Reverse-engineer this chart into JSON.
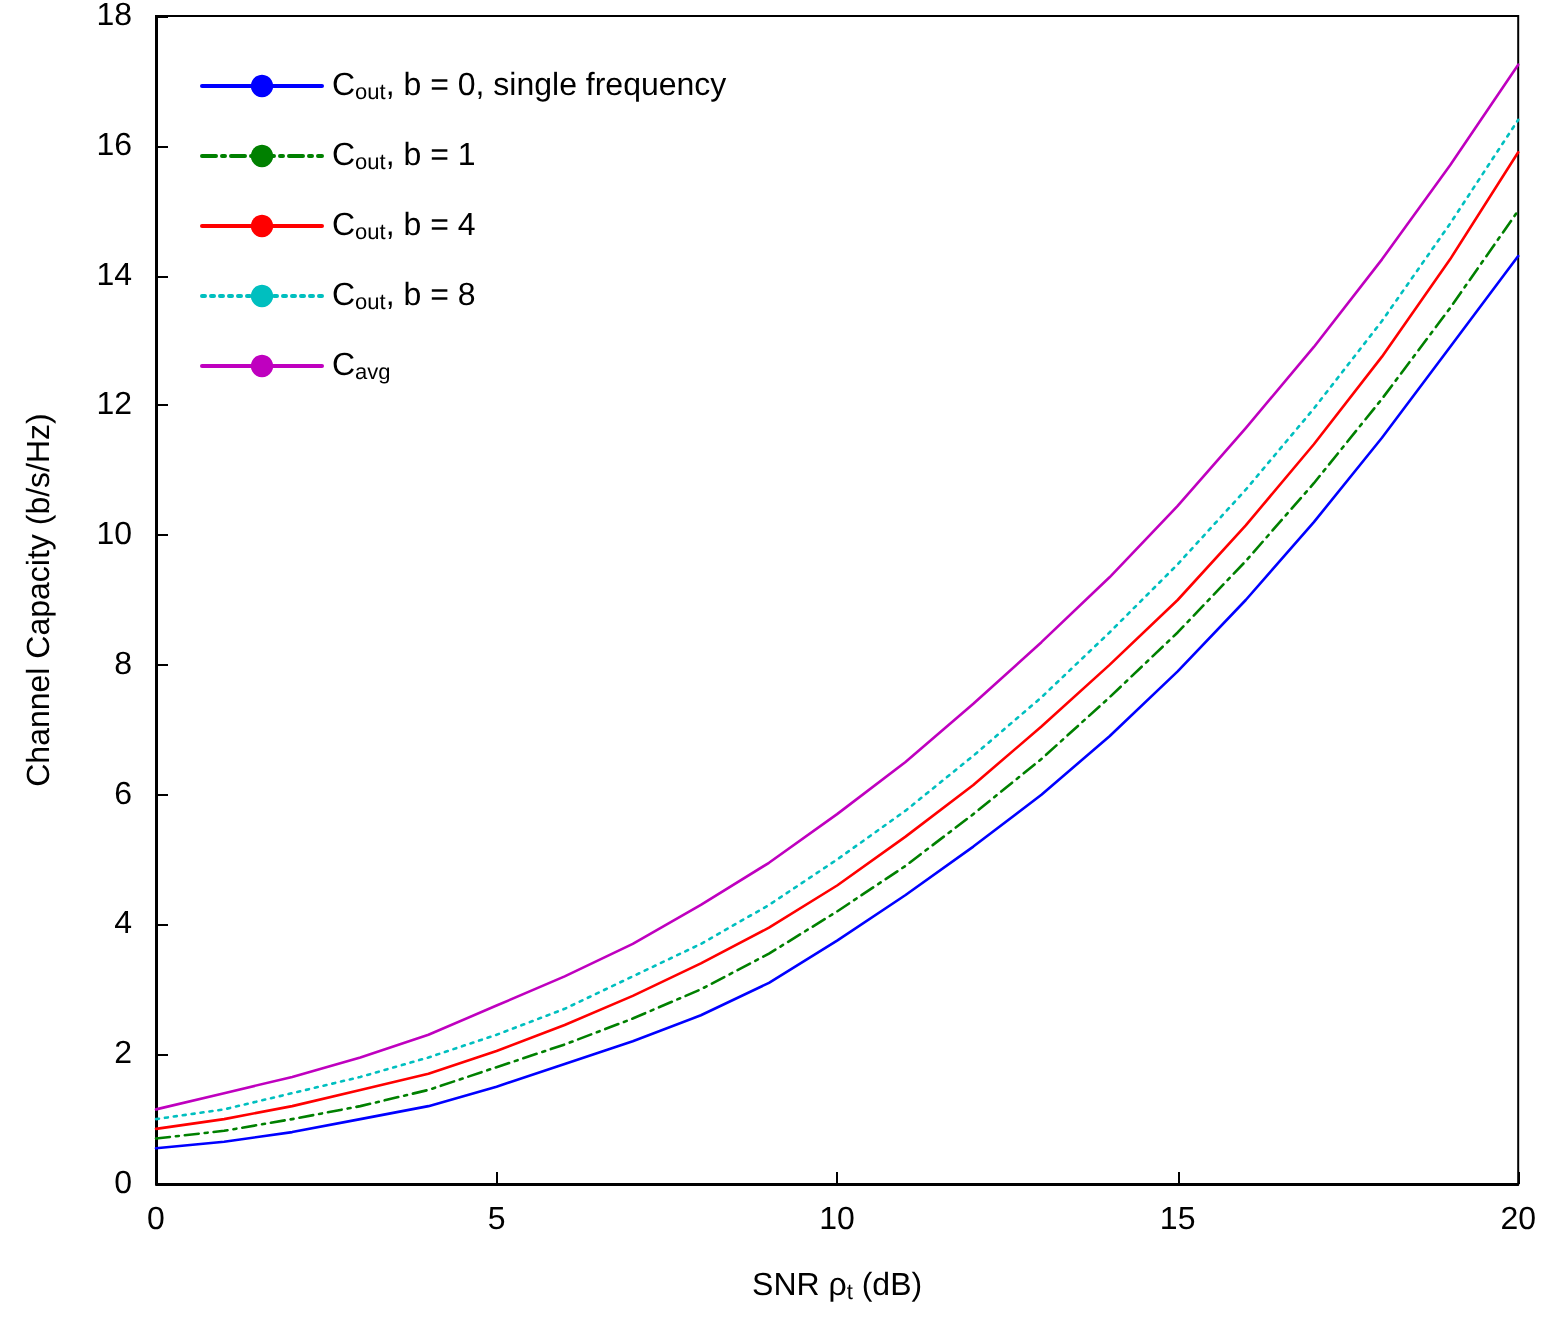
{
  "chart_data": {
    "type": "line",
    "xlabel": "SNR ρ$_{t}$ (dB)",
    "ylabel": "Channel Capacity (b/s/Hz)",
    "x": [
      0,
      1,
      2,
      3,
      4,
      5,
      6,
      7,
      8,
      9,
      10,
      11,
      12,
      13,
      14,
      15,
      16,
      17,
      18,
      19,
      20
    ],
    "xlim": [
      0,
      20
    ],
    "xticks": [
      0,
      5,
      10,
      15,
      20
    ],
    "ylim": [
      0,
      18
    ],
    "yticks": [
      0,
      2,
      4,
      6,
      8,
      10,
      12,
      14,
      16,
      18
    ],
    "legend": "top left",
    "marker": "none",
    "series": [
      {
        "name": "C$_{out}$, b = 0, single frequency",
        "color": "#0000ff",
        "line_style": "solid",
        "values": [
          0.55,
          0.65,
          0.8,
          1.0,
          1.2,
          1.5,
          1.85,
          2.2,
          2.6,
          3.1,
          3.75,
          4.45,
          5.2,
          6.0,
          6.9,
          7.9,
          9.0,
          10.2,
          11.5,
          12.9,
          14.3
        ]
      },
      {
        "name": "C$_{out}$, b = 1",
        "color": "#008000",
        "line_style": "dashed",
        "values": [
          0.7,
          0.82,
          1.0,
          1.2,
          1.45,
          1.8,
          2.15,
          2.55,
          3.0,
          3.55,
          4.2,
          4.9,
          5.7,
          6.55,
          7.5,
          8.5,
          9.6,
          10.8,
          12.1,
          13.5,
          15.0
        ]
      },
      {
        "name": "C$_{out}$, b = 4",
        "color": "#ff0000",
        "line_style": "solid",
        "values": [
          0.85,
          1.0,
          1.2,
          1.45,
          1.7,
          2.05,
          2.45,
          2.9,
          3.4,
          3.95,
          4.6,
          5.35,
          6.15,
          7.05,
          8.0,
          9.0,
          10.15,
          11.4,
          12.75,
          14.25,
          15.9
        ]
      },
      {
        "name": "C$_{out}$, b = 8",
        "color": "#00bfbf",
        "line_style": "dotted",
        "values": [
          1.0,
          1.15,
          1.4,
          1.65,
          1.95,
          2.3,
          2.7,
          3.2,
          3.7,
          4.3,
          5.0,
          5.75,
          6.6,
          7.5,
          8.5,
          9.55,
          10.7,
          11.95,
          13.3,
          14.8,
          16.4
        ]
      },
      {
        "name": "C$_{avg}$",
        "color": "#bf00bf",
        "line_style": "solid",
        "values": [
          1.15,
          1.4,
          1.65,
          1.95,
          2.3,
          2.75,
          3.2,
          3.7,
          4.3,
          4.95,
          5.7,
          6.5,
          7.4,
          8.35,
          9.35,
          10.45,
          11.65,
          12.9,
          14.25,
          15.7,
          17.25
        ]
      }
    ]
  }
}
